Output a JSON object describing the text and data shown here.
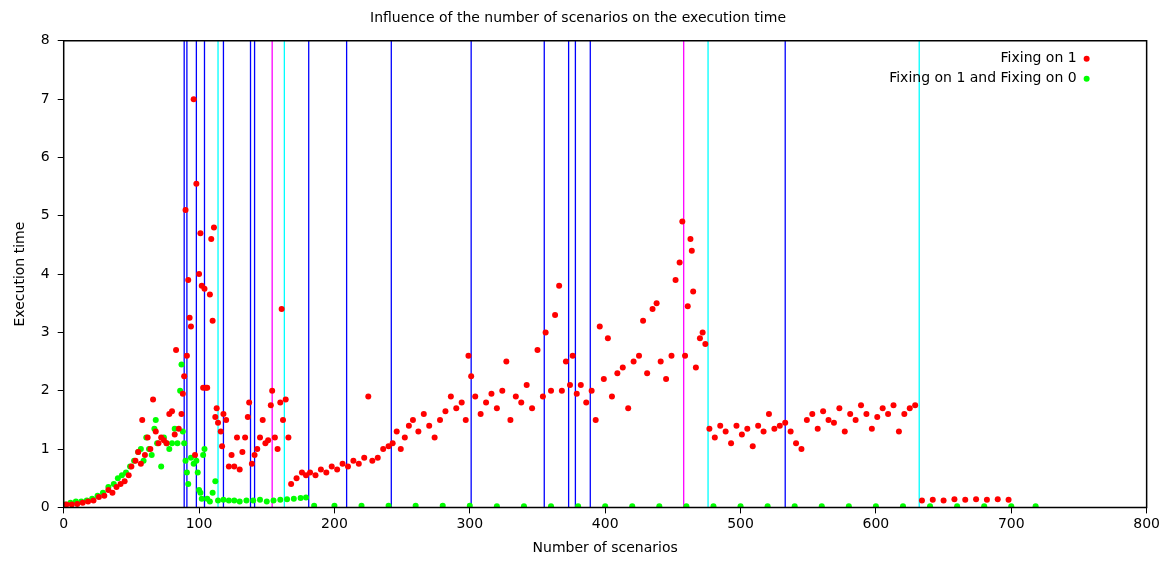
{
  "chart_data": {
    "type": "scatter",
    "title": "Influence of the number of scenarios on the execution time",
    "xlabel": "Number of scenarios",
    "ylabel": "Execution time",
    "xlim": [
      0,
      800
    ],
    "xticks": [
      0,
      100,
      200,
      300,
      400,
      500,
      600,
      700,
      800
    ],
    "ylim": [
      0,
      8
    ],
    "yticks": [
      0,
      1,
      2,
      3,
      4,
      5,
      6,
      7,
      8
    ],
    "grid": false,
    "legend": "top right",
    "marker": "circle",
    "series": [
      {
        "name": "Fixing on 1",
        "color": "#ff0000",
        "x": [
          2,
          6,
          10,
          14,
          18,
          22,
          26,
          30,
          33,
          36,
          39,
          42,
          45,
          48,
          50,
          53,
          55,
          57,
          58,
          60,
          62,
          64,
          66,
          68,
          70,
          72,
          74,
          76,
          78,
          80,
          82,
          83,
          85,
          87,
          88,
          89,
          90,
          91,
          92,
          93,
          94,
          96,
          97,
          98,
          100,
          101,
          102,
          103,
          104,
          105,
          106,
          108,
          109,
          110,
          111,
          112,
          113,
          114,
          116,
          117,
          118,
          120,
          122,
          124,
          126,
          128,
          130,
          132,
          134,
          136,
          137,
          139,
          141,
          143,
          145,
          147,
          149,
          151,
          153,
          154,
          156,
          158,
          160,
          161,
          162,
          164,
          166,
          168,
          172,
          176,
          179,
          182,
          186,
          190,
          194,
          198,
          202,
          206,
          210,
          214,
          218,
          222,
          225,
          228,
          232,
          236,
          240,
          243,
          246,
          249,
          252,
          255,
          258,
          262,
          266,
          270,
          274,
          278,
          282,
          286,
          290,
          294,
          297,
          299,
          301,
          304,
          308,
          312,
          316,
          320,
          324,
          327,
          330,
          334,
          338,
          342,
          346,
          350,
          354,
          356,
          360,
          363,
          366,
          368,
          371,
          374,
          376,
          379,
          382,
          386,
          390,
          393,
          396,
          399,
          402,
          405,
          409,
          413,
          417,
          421,
          425,
          428,
          431,
          435,
          438,
          441,
          445,
          449,
          452,
          455,
          457,
          459,
          461,
          463,
          464,
          465,
          467,
          470,
          472,
          474,
          477,
          481,
          485,
          489,
          493,
          497,
          501,
          505,
          509,
          513,
          517,
          521,
          525,
          529,
          533,
          537,
          541,
          545,
          549,
          553,
          557,
          561,
          565,
          569,
          573,
          577,
          581,
          585,
          589,
          593,
          597,
          601,
          605,
          609,
          613,
          617,
          621,
          625,
          629,
          634,
          642,
          650,
          658,
          666,
          674,
          682,
          690,
          698
        ],
        "values": [
          0.05,
          0.05,
          0.06,
          0.08,
          0.1,
          0.12,
          0.18,
          0.2,
          0.3,
          0.25,
          0.35,
          0.4,
          0.45,
          0.55,
          0.7,
          0.8,
          0.95,
          0.75,
          1.5,
          0.9,
          1.2,
          1.0,
          1.85,
          1.3,
          1.1,
          1.2,
          1.15,
          1.1,
          1.6,
          1.65,
          1.25,
          2.7,
          1.35,
          1.6,
          1.95,
          2.25,
          5.1,
          2.6,
          3.9,
          3.25,
          3.1,
          7.0,
          0.9,
          5.55,
          4.0,
          4.7,
          3.8,
          2.05,
          3.75,
          2.05,
          2.05,
          3.65,
          4.6,
          3.2,
          4.8,
          1.55,
          1.7,
          1.45,
          1.3,
          1.05,
          1.6,
          1.5,
          0.7,
          0.9,
          0.7,
          1.2,
          0.65,
          0.95,
          1.2,
          1.55,
          1.8,
          0.75,
          0.9,
          1.0,
          1.2,
          1.5,
          1.1,
          1.15,
          1.75,
          2.0,
          1.2,
          1.0,
          1.8,
          3.4,
          1.5,
          1.85,
          1.2,
          0.4,
          0.5,
          0.6,
          0.55,
          0.6,
          0.55,
          0.65,
          0.6,
          0.7,
          0.65,
          0.75,
          0.7,
          0.8,
          0.75,
          0.85,
          1.9,
          0.8,
          0.85,
          1.0,
          1.05,
          1.1,
          1.3,
          1.0,
          1.2,
          1.4,
          1.5,
          1.3,
          1.6,
          1.4,
          1.2,
          1.5,
          1.65,
          1.9,
          1.7,
          1.8,
          1.5,
          2.6,
          2.25,
          1.9,
          1.6,
          1.8,
          1.95,
          1.7,
          2.0,
          2.5,
          1.5,
          1.9,
          1.8,
          2.1,
          1.7,
          2.7,
          1.9,
          3.0,
          2.0,
          3.3,
          3.8,
          2.0,
          2.5,
          2.1,
          2.6,
          1.95,
          2.1,
          1.8,
          2.0,
          1.5,
          3.1,
          2.2,
          2.9,
          1.9,
          2.3,
          2.4,
          1.7,
          2.5,
          2.6,
          3.2,
          2.3,
          3.4,
          3.5,
          2.5,
          2.2,
          2.6,
          3.9,
          4.2,
          4.9,
          2.6,
          3.45,
          4.6,
          4.4,
          3.7,
          2.4,
          2.9,
          3.0,
          2.8,
          1.35,
          1.2,
          1.4,
          1.3,
          1.1,
          1.4,
          1.25,
          1.35,
          1.05,
          1.4,
          1.3,
          1.6,
          1.35,
          1.4,
          1.45,
          1.3,
          1.1,
          1.0,
          1.5,
          1.6,
          1.35,
          1.65,
          1.5,
          1.45,
          1.7,
          1.3,
          1.6,
          1.5,
          1.75,
          1.6,
          1.35,
          1.55,
          1.7,
          1.6,
          1.75,
          1.3,
          1.6,
          1.7,
          1.75,
          0.12,
          0.13,
          0.12,
          0.14,
          0.13,
          0.14,
          0.13,
          0.14,
          0.13
        ]
      },
      {
        "name": "Fixing on 1 and Fixing on 0",
        "color": "#00ff00",
        "x": [
          1,
          5,
          9,
          13,
          17,
          21,
          25,
          29,
          33,
          37,
          40,
          43,
          46,
          49,
          52,
          55,
          57,
          59,
          61,
          63,
          65,
          67,
          68,
          69,
          72,
          74,
          76,
          78,
          80,
          82,
          84,
          86,
          87,
          88,
          89,
          90,
          91,
          92,
          94,
          96,
          98,
          99,
          100,
          101,
          102,
          103,
          104,
          106,
          108,
          110,
          112,
          114,
          118,
          122,
          126,
          130,
          135,
          140,
          145,
          150,
          155,
          160,
          165,
          170,
          175,
          179,
          185,
          200,
          220,
          240,
          260,
          280,
          300,
          320,
          340,
          360,
          380,
          400,
          420,
          440,
          460,
          480,
          500,
          520,
          540,
          560,
          580,
          600,
          620,
          640,
          660,
          680,
          700,
          718
        ],
        "values": [
          0.05,
          0.08,
          0.1,
          0.1,
          0.12,
          0.15,
          0.2,
          0.25,
          0.35,
          0.4,
          0.5,
          0.55,
          0.6,
          0.7,
          0.8,
          0.95,
          1.0,
          0.8,
          1.2,
          1.0,
          0.9,
          1.35,
          1.5,
          1.1,
          0.7,
          1.2,
          1.1,
          1.0,
          1.1,
          1.35,
          1.1,
          2.0,
          2.45,
          1.3,
          1.1,
          0.8,
          0.6,
          0.4,
          0.85,
          0.75,
          0.8,
          0.6,
          0.3,
          0.25,
          0.15,
          0.9,
          1.0,
          0.15,
          0.1,
          0.25,
          0.45,
          0.12,
          0.13,
          0.12,
          0.12,
          0.1,
          0.12,
          0.12,
          0.13,
          0.1,
          0.12,
          0.13,
          0.14,
          0.15,
          0.16,
          0.17,
          0.03,
          0.03,
          0.03,
          0.03,
          0.03,
          0.03,
          0.03,
          0.02,
          0.02,
          0.02,
          0.02,
          0.02,
          0.02,
          0.02,
          0.02,
          0.02,
          0.02,
          0.02,
          0.02,
          0.02,
          0.02,
          0.02,
          0.02,
          0.02,
          0.02,
          0.02,
          0.02,
          0.02
        ]
      }
    ],
    "ref_lines": [
      {
        "axis": "x",
        "value": 89,
        "color": "#0000ff"
      },
      {
        "axis": "x",
        "value": 91,
        "color": "#0000ff"
      },
      {
        "axis": "x",
        "value": 98,
        "color": "#0000ff"
      },
      {
        "axis": "x",
        "value": 104,
        "color": "#0000ff"
      },
      {
        "axis": "x",
        "value": 114,
        "color": "#00ffff"
      },
      {
        "axis": "x",
        "value": 118,
        "color": "#0000ff"
      },
      {
        "axis": "x",
        "value": 138,
        "color": "#0000ff"
      },
      {
        "axis": "x",
        "value": 141,
        "color": "#0000ff"
      },
      {
        "axis": "x",
        "value": 154,
        "color": "#ff00ff"
      },
      {
        "axis": "x",
        "value": 163,
        "color": "#00ffff"
      },
      {
        "axis": "x",
        "value": 181,
        "color": "#0000ff"
      },
      {
        "axis": "x",
        "value": 209,
        "color": "#0000ff"
      },
      {
        "axis": "x",
        "value": 242,
        "color": "#0000ff"
      },
      {
        "axis": "x",
        "value": 301,
        "color": "#0000ff"
      },
      {
        "axis": "x",
        "value": 355,
        "color": "#0000ff"
      },
      {
        "axis": "x",
        "value": 373,
        "color": "#0000ff"
      },
      {
        "axis": "x",
        "value": 378,
        "color": "#0000ff"
      },
      {
        "axis": "x",
        "value": 389,
        "color": "#0000ff"
      },
      {
        "axis": "x",
        "value": 458,
        "color": "#ff00ff"
      },
      {
        "axis": "x",
        "value": 476,
        "color": "#00ffff"
      },
      {
        "axis": "x",
        "value": 533,
        "color": "#0000ff"
      },
      {
        "axis": "x",
        "value": 632,
        "color": "#00ffff"
      }
    ]
  }
}
